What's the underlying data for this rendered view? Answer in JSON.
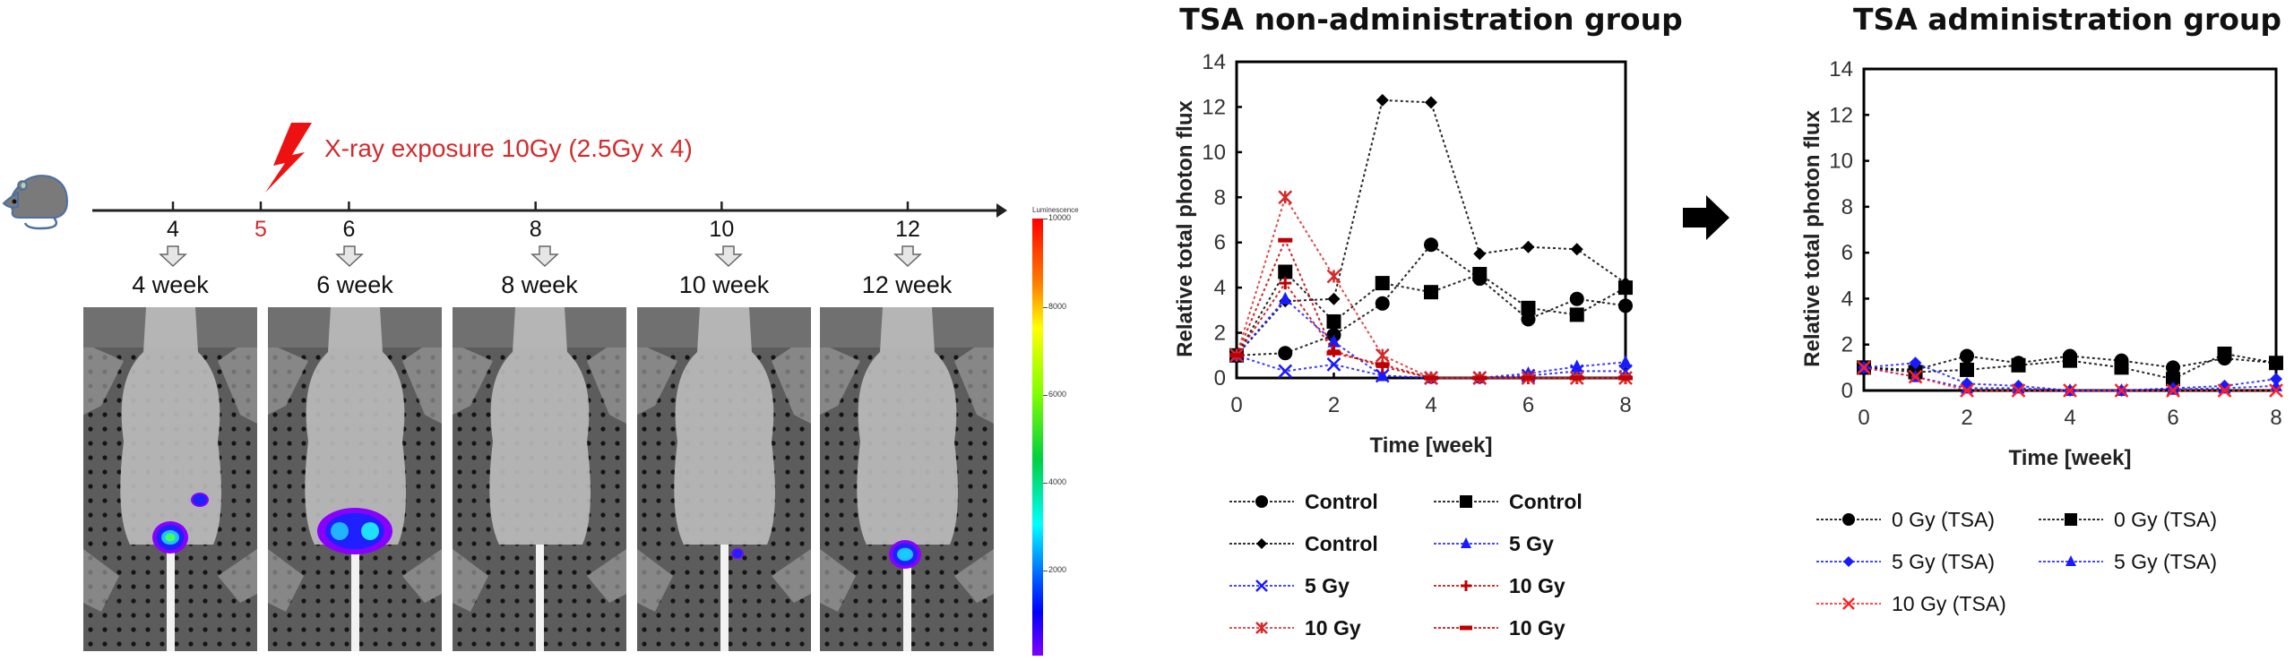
{
  "timeline": {
    "exposure_label": "X-ray exposure 10Gy (2.5Gy x 4)",
    "ticks": [
      {
        "label": "4",
        "week": 4
      },
      {
        "label": "5",
        "week": 5,
        "highlight": true
      },
      {
        "label": "6",
        "week": 6
      },
      {
        "label": "8",
        "week": 8
      },
      {
        "label": "10",
        "week": 10
      },
      {
        "label": "12",
        "week": 12
      }
    ],
    "imaging_labels": [
      "4 week",
      "6 week",
      "8 week",
      "10 week",
      "12 week"
    ],
    "accent_color": "#e01919"
  },
  "colorbar": {
    "title": "Luminescence",
    "ticks": [
      "10000",
      "8000",
      "6000",
      "4000",
      "2000"
    ]
  },
  "chart_data": [
    {
      "type": "line",
      "title": "TSA non-administration group",
      "xlabel": "Time [week]",
      "ylabel": "Relative total photon flux",
      "xlim": [
        0,
        8
      ],
      "ylim": [
        0,
        14
      ],
      "xticks": [
        "0",
        "2",
        "4",
        "6",
        "8"
      ],
      "yticks": [
        "0",
        "2",
        "4",
        "6",
        "8",
        "10",
        "12",
        "14"
      ],
      "x": [
        0,
        1,
        2,
        3,
        4,
        5,
        6,
        7,
        8
      ],
      "legend_position": "bottom",
      "series": [
        {
          "name": "Control",
          "marker": "circle",
          "color": "#000000",
          "values": [
            1,
            1.1,
            1.9,
            3.3,
            5.9,
            4.4,
            2.6,
            3.5,
            3.2
          ]
        },
        {
          "name": "Control",
          "marker": "square",
          "color": "#000000",
          "values": [
            1,
            4.7,
            2.5,
            4.2,
            3.8,
            4.6,
            3.1,
            2.8,
            4.0
          ]
        },
        {
          "name": "Control",
          "marker": "diamond",
          "color": "#000000",
          "values": [
            1,
            3.4,
            3.5,
            12.3,
            12.2,
            5.5,
            5.8,
            5.7,
            4.2
          ]
        },
        {
          "name": "5 Gy",
          "marker": "triangle",
          "color": "#1a1aff",
          "values": [
            1,
            3.5,
            1.6,
            0.1,
            0,
            0,
            0.2,
            0.5,
            0.7
          ]
        },
        {
          "name": "5 Gy",
          "marker": "x",
          "color": "#1a1aff",
          "values": [
            1,
            0.3,
            0.6,
            0.1,
            0,
            0,
            0.1,
            0.3,
            0.3
          ]
        },
        {
          "name": "10 Gy",
          "marker": "plus",
          "color": "#c00000",
          "values": [
            1,
            4.2,
            1.2,
            0.5,
            0,
            0,
            0,
            0,
            0
          ]
        },
        {
          "name": "10 Gy",
          "marker": "star",
          "color": "#d42a2a",
          "values": [
            1,
            8.0,
            4.5,
            1.0,
            0,
            0,
            0,
            0,
            0
          ]
        },
        {
          "name": "10 Gy",
          "marker": "dash",
          "color": "#c00000",
          "values": [
            1,
            6.1,
            1.1,
            0.6,
            0,
            0,
            0,
            0,
            0
          ]
        }
      ]
    },
    {
      "type": "line",
      "title": "TSA administration group",
      "xlabel": "Time [week]",
      "ylabel": "Relative total photon flux",
      "xlim": [
        0,
        8
      ],
      "ylim": [
        0,
        14
      ],
      "xticks": [
        "0",
        "2",
        "4",
        "6",
        "8"
      ],
      "yticks": [
        "0",
        "2",
        "4",
        "6",
        "8",
        "10",
        "12",
        "14"
      ],
      "x": [
        0,
        1,
        2,
        3,
        4,
        5,
        6,
        7,
        8
      ],
      "legend_position": "bottom",
      "series": [
        {
          "name": "0 Gy (TSA)",
          "marker": "circle",
          "color": "#000000",
          "values": [
            1,
            0.9,
            1.5,
            1.2,
            1.5,
            1.3,
            1.0,
            1.4,
            1.2
          ]
        },
        {
          "name": "0 Gy (TSA)",
          "marker": "square",
          "color": "#000000",
          "values": [
            1,
            0.8,
            0.9,
            1.1,
            1.3,
            1.0,
            0.5,
            1.6,
            1.2
          ]
        },
        {
          "name": "5 Gy (TSA)",
          "marker": "diamond",
          "color": "#1a1aff",
          "values": [
            1,
            1.2,
            0.3,
            0.2,
            0,
            0,
            0.1,
            0.2,
            0.5
          ]
        },
        {
          "name": "5 Gy (TSA)",
          "marker": "triangle",
          "color": "#1a1aff",
          "values": [
            1,
            0.6,
            0.1,
            0.1,
            0,
            0,
            0.05,
            0.1,
            0.2
          ]
        },
        {
          "name": "10 Gy (TSA)",
          "marker": "x",
          "color": "#ff2020",
          "values": [
            1,
            0.6,
            0,
            0,
            0,
            0,
            0,
            0,
            0
          ]
        }
      ]
    }
  ]
}
